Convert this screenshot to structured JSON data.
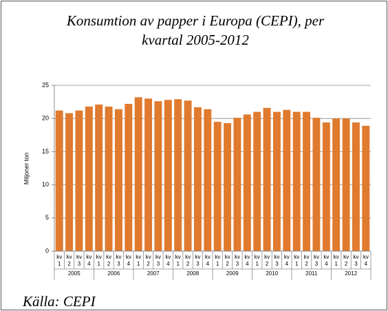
{
  "chart_data": {
    "type": "bar",
    "title": "Konsumtion av papper i Europa (CEPI), per kvartal 2005-2012",
    "y_label": "Miljoner ton",
    "source": "Källa: CEPI",
    "categories": [
      "kv 1",
      "kv 2",
      "kv 3",
      "kv 4",
      "kv 1",
      "kv 2",
      "kv 3",
      "kv 4",
      "kv 1",
      "kv 2",
      "kv 3",
      "kv 4",
      "kv 1",
      "kv 2",
      "kv 3",
      "kv 4",
      "kv 1",
      "kv 2",
      "kv 3",
      "kv 4",
      "kv 1",
      "kv 2",
      "kv 3",
      "kv 4",
      "kv 1",
      "kv 2",
      "kv 3",
      "kv 4",
      "kv 1",
      "kv 2",
      "kv 3",
      "kv 4"
    ],
    "groups": [
      "2005",
      "2006",
      "2007",
      "2008",
      "2009",
      "2010",
      "2011",
      "2012"
    ],
    "values": [
      21.2,
      20.8,
      21.2,
      21.8,
      22.1,
      21.8,
      21.4,
      22.2,
      23.2,
      23.0,
      22.6,
      22.8,
      22.9,
      22.7,
      21.7,
      21.4,
      19.5,
      19.3,
      20.1,
      20.6,
      21.0,
      21.6,
      21.0,
      21.3,
      21.0,
      21.0,
      20.1,
      19.4,
      20.0,
      20.0,
      19.4,
      18.9
    ],
    "color": "#e07a2e",
    "ylim": [
      0,
      25
    ],
    "yticks": [
      0,
      5,
      10,
      15,
      20,
      25
    ],
    "grid": true
  }
}
